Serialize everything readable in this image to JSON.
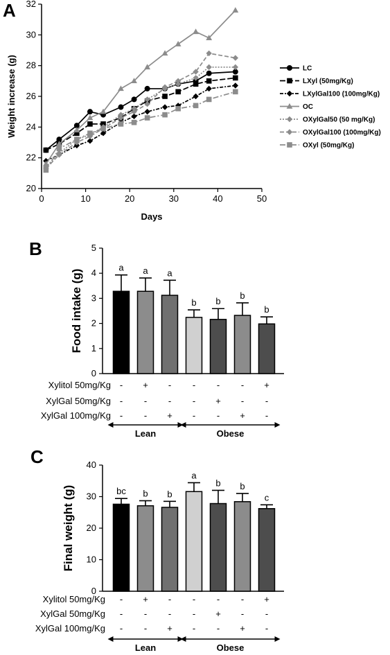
{
  "chart_data": [
    {
      "panel": "A",
      "type": "line",
      "xlabel": "Days",
      "ylabel": "Weight increase (g)",
      "xlim": [
        0,
        50
      ],
      "ylim": [
        20,
        32
      ],
      "xticks": [
        0,
        10,
        20,
        30,
        40,
        50
      ],
      "yticks": [
        20,
        22,
        24,
        26,
        28,
        30,
        32
      ],
      "legend_position": "right",
      "x": [
        1,
        4,
        8,
        11,
        14,
        18,
        21,
        24,
        28,
        31,
        35,
        38,
        44
      ],
      "series": [
        {
          "name": "LC",
          "color": "#000000",
          "dash": "",
          "marker": "circle",
          "values": [
            22.5,
            23.2,
            24.1,
            25.0,
            24.8,
            25.3,
            25.8,
            26.5,
            26.5,
            26.8,
            27.0,
            27.5,
            27.6
          ]
        },
        {
          "name": "LXyl (50mg/Kg)",
          "color": "#000000",
          "dash": "8,3",
          "marker": "square",
          "values": [
            22.5,
            22.9,
            23.6,
            24.2,
            24.2,
            24.6,
            25.2,
            25.7,
            26.0,
            26.3,
            26.8,
            27.0,
            27.2
          ]
        },
        {
          "name": "LXylGal100 (100mg/Kg)",
          "color": "#000000",
          "dash": "5,2,2,2",
          "marker": "diamond",
          "values": [
            21.8,
            22.2,
            22.8,
            23.1,
            23.6,
            24.3,
            24.7,
            25.0,
            25.3,
            25.4,
            26.0,
            26.5,
            26.7
          ]
        },
        {
          "name": "OC",
          "color": "#8c8c8c",
          "dash": "",
          "marker": "triangle",
          "values": [
            21.6,
            22.9,
            23.8,
            24.6,
            25.0,
            26.5,
            27.0,
            27.9,
            28.8,
            29.4,
            30.2,
            29.8,
            31.6
          ]
        },
        {
          "name": "OXylGal50 (50 mg/Kg)",
          "color": "#8c8c8c",
          "dash": "2,2",
          "marker": "diamond",
          "values": [
            21.4,
            22.3,
            23.2,
            23.5,
            24.0,
            24.8,
            25.2,
            25.8,
            26.5,
            26.8,
            27.2,
            27.9,
            27.9
          ]
        },
        {
          "name": "OXylGal100 (100mg/Kg)",
          "color": "#8c8c8c",
          "dash": "6,3",
          "marker": "diamond",
          "values": [
            21.3,
            22.2,
            23.0,
            23.4,
            23.9,
            24.6,
            25.0,
            25.5,
            26.6,
            27.0,
            27.6,
            28.8,
            28.5
          ]
        },
        {
          "name": "OXyl (50mg/Kg)",
          "color": "#8c8c8c",
          "dash": "8,3,2,3",
          "marker": "square",
          "values": [
            21.2,
            22.6,
            23.2,
            23.6,
            23.9,
            24.2,
            24.3,
            24.6,
            24.8,
            25.2,
            25.4,
            25.8,
            26.3
          ]
        }
      ]
    },
    {
      "panel": "B",
      "type": "bar",
      "ylabel": "Food intake (g)",
      "ylim": [
        0,
        5
      ],
      "yticks": [
        0,
        1,
        2,
        3,
        4,
        5
      ],
      "bars": [
        {
          "value": 3.28,
          "error": 0.65,
          "label": "a",
          "color": "#000000"
        },
        {
          "value": 3.28,
          "error": 0.53,
          "label": "a",
          "color": "#8c8c8c"
        },
        {
          "value": 3.12,
          "error": 0.6,
          "label": "a",
          "color": "#707070"
        },
        {
          "value": 2.24,
          "error": 0.3,
          "label": "b",
          "color": "#d0d0d0"
        },
        {
          "value": 2.16,
          "error": 0.43,
          "label": "b",
          "color": "#4d4d4d"
        },
        {
          "value": 2.32,
          "error": 0.5,
          "label": "b",
          "color": "#8c8c8c"
        },
        {
          "value": 1.98,
          "error": 0.28,
          "label": "b",
          "color": "#4d4d4d"
        }
      ],
      "rows": [
        {
          "label": "Xylitol 50mg/Kg",
          "signs": [
            "-",
            "+",
            "-",
            "-",
            "-",
            "-",
            "+"
          ]
        },
        {
          "label": "XylGal 50mg/Kg",
          "signs": [
            "-",
            "-",
            "-",
            "-",
            "+",
            "-",
            "-"
          ]
        },
        {
          "label": "XylGal 100mg/Kg",
          "signs": [
            "-",
            "-",
            "+",
            "-",
            "-",
            "+",
            "-"
          ]
        }
      ],
      "groups": [
        {
          "label": "Lean",
          "from": 0,
          "to": 2
        },
        {
          "label": "Obese",
          "from": 3,
          "to": 6
        }
      ]
    },
    {
      "panel": "C",
      "type": "bar",
      "ylabel": "Final weight (g)",
      "ylim": [
        0,
        40
      ],
      "yticks": [
        0,
        10,
        20,
        30,
        40
      ],
      "bars": [
        {
          "value": 27.6,
          "error": 1.8,
          "label": "bc",
          "color": "#000000"
        },
        {
          "value": 27.1,
          "error": 1.6,
          "label": "b",
          "color": "#8c8c8c"
        },
        {
          "value": 26.6,
          "error": 1.9,
          "label": "b",
          "color": "#707070"
        },
        {
          "value": 31.6,
          "error": 2.8,
          "label": "a",
          "color": "#d0d0d0"
        },
        {
          "value": 27.8,
          "error": 4.2,
          "label": "b",
          "color": "#4d4d4d"
        },
        {
          "value": 28.4,
          "error": 2.6,
          "label": "b",
          "color": "#8c8c8c"
        },
        {
          "value": 26.2,
          "error": 1.2,
          "label": "c",
          "color": "#4d4d4d"
        }
      ],
      "rows": [
        {
          "label": "Xylitol 50mg/Kg",
          "signs": [
            "-",
            "+",
            "-",
            "-",
            "-",
            "-",
            "+"
          ]
        },
        {
          "label": "XylGal 50mg/Kg",
          "signs": [
            "-",
            "-",
            "-",
            "-",
            "+",
            "-",
            "-"
          ]
        },
        {
          "label": "XylGal 100mg/Kg",
          "signs": [
            "-",
            "-",
            "+",
            "-",
            "-",
            "+",
            "-"
          ]
        }
      ],
      "groups": [
        {
          "label": "Lean",
          "from": 0,
          "to": 2
        },
        {
          "label": "Obese",
          "from": 3,
          "to": 6
        }
      ]
    }
  ]
}
